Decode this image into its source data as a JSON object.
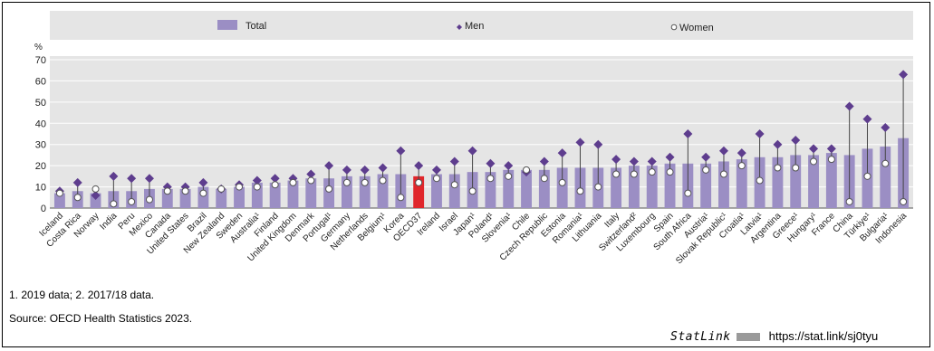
{
  "chart_data": {
    "type": "bar",
    "ylabel": "%",
    "ylim": [
      0,
      70
    ],
    "yticks": [
      0,
      10,
      20,
      30,
      40,
      50,
      60,
      70
    ],
    "grid": true,
    "legend_position": "top",
    "highlight_category": "OECD37",
    "categories": [
      "Iceland",
      "Costa Rica",
      "Norway",
      "India",
      "Peru",
      "Mexico",
      "Canada",
      "United States",
      "Brazil",
      "New Zealand",
      "Sweden",
      "Australia¹",
      "Finland",
      "United Kingdom",
      "Denmark",
      "Portugal¹",
      "Germany",
      "Netherlands",
      "Belgium¹",
      "Korea",
      "OECD37",
      "Ireland",
      "Israel",
      "Japan¹",
      "Poland¹",
      "Slovenia¹",
      "Chile",
      "Czech Republic",
      "Estonia",
      "Romania¹",
      "Lithuania",
      "Italy",
      "Switzerland²",
      "Luxembourg",
      "Spain",
      "South Africa",
      "Austria¹",
      "Slovak Republic¹",
      "Croatia¹",
      "Latvia¹",
      "Argentina",
      "Greece¹",
      "Hungary¹",
      "France",
      "China",
      "Türkiye¹",
      "Bulgaria¹",
      "Indonesia"
    ],
    "series": [
      {
        "name": "Total",
        "marker": "bar",
        "color": "#9b8ec4",
        "values": [
          7,
          8,
          7,
          8,
          8,
          9,
          9,
          9,
          10,
          9,
          10,
          12,
          12,
          13,
          14,
          14,
          15,
          15,
          16,
          16,
          15,
          16,
          16,
          17,
          17,
          18,
          18,
          18,
          19,
          19,
          19,
          19,
          20,
          20,
          21,
          21,
          21,
          22,
          23,
          24,
          24,
          25,
          25,
          26,
          25,
          28,
          29,
          33
        ]
      },
      {
        "name": "Men",
        "marker": "diamond",
        "color": "#5e3d8e",
        "values": [
          8,
          12,
          6,
          15,
          14,
          14,
          10,
          10,
          12,
          9,
          11,
          13,
          14,
          14,
          16,
          20,
          18,
          18,
          19,
          27,
          20,
          18,
          22,
          27,
          21,
          20,
          17,
          22,
          26,
          31,
          30,
          23,
          22,
          22,
          24,
          35,
          24,
          27,
          26,
          35,
          30,
          32,
          28,
          28,
          48,
          42,
          38,
          63
        ]
      },
      {
        "name": "Women",
        "marker": "circle",
        "color": "#ffffff",
        "values": [
          7,
          5,
          9,
          2,
          3,
          4,
          8,
          8,
          7,
          9,
          10,
          10,
          11,
          12,
          13,
          9,
          12,
          12,
          13,
          5,
          12,
          14,
          11,
          8,
          14,
          15,
          18,
          14,
          12,
          8,
          10,
          16,
          16,
          17,
          17,
          7,
          18,
          16,
          20,
          13,
          19,
          19,
          22,
          23,
          3,
          15,
          21,
          3
        ]
      }
    ]
  },
  "footnote": "1. 2019 data; 2. 2017/18 data.",
  "source": "Source: OECD Health Statistics 2023.",
  "statlink": {
    "label": "StatLink",
    "url": "https://stat.link/sj0tyu"
  }
}
